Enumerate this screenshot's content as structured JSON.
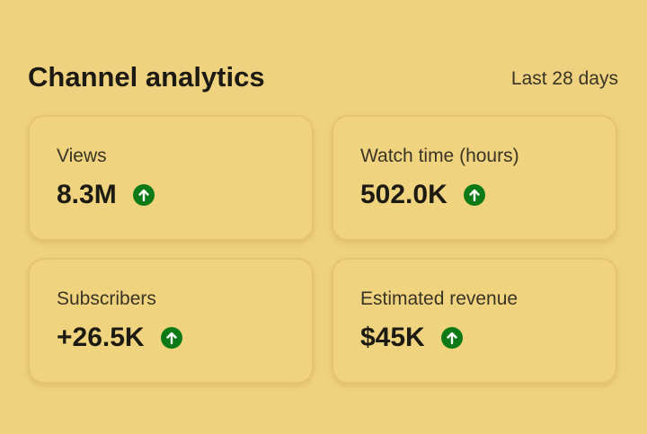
{
  "header": {
    "title": "Channel analytics",
    "period": "Last 28 days"
  },
  "cards": [
    {
      "label": "Views",
      "value": "8.3M"
    },
    {
      "label": "Watch time (hours)",
      "value": "502.0K"
    },
    {
      "label": "Subscribers",
      "value": "+26.5K"
    },
    {
      "label": "Estimated revenue",
      "value": "$45K"
    }
  ]
}
